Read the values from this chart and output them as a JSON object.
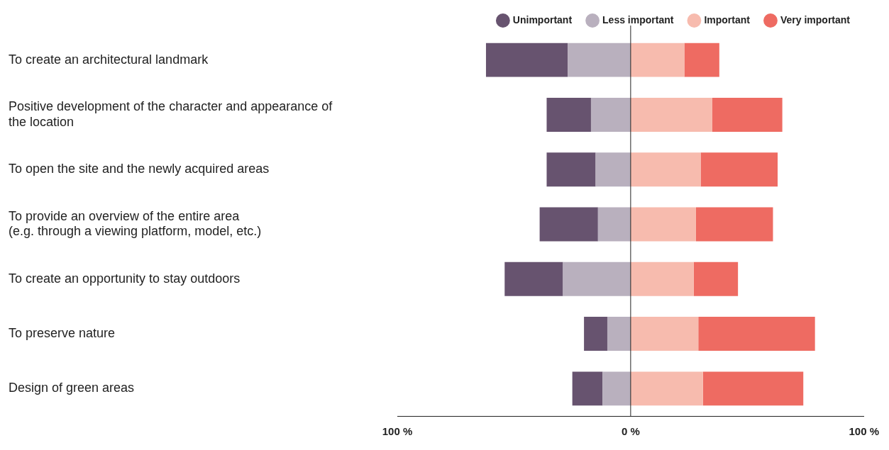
{
  "chart_data": {
    "type": "bar",
    "orientation": "horizontal",
    "stacked": true,
    "categories": [
      "To create an architectural landmark",
      "Positive development of the character and appearance of\nthe location",
      "To open the site and the newly acquired areas",
      "To provide an overview of the entire area\n(e.g. through a viewing platform, model, etc.)",
      "To create an opportunity to stay outdoors",
      "To preserve nature",
      "Design of green areas"
    ],
    "series": [
      {
        "name": "Less important",
        "color": "#b9b0be",
        "values": [
          -27,
          -17,
          -15,
          -14,
          -29,
          -10,
          -12
        ]
      },
      {
        "name": "Unimportant",
        "color": "#67536f",
        "values": [
          -35,
          -19,
          -21,
          -25,
          -25,
          -10,
          -13
        ]
      },
      {
        "name": "Important",
        "color": "#f7bbae",
        "values": [
          23,
          35,
          30,
          28,
          27,
          29,
          31
        ]
      },
      {
        "name": "Very important",
        "color": "#ee6b62",
        "values": [
          15,
          30,
          33,
          33,
          19,
          50,
          43
        ]
      }
    ],
    "xlim": [
      -100,
      100
    ],
    "xticks": [
      {
        "value": -100,
        "label": "100 %"
      },
      {
        "value": 0,
        "label": "0 %"
      },
      {
        "value": 100,
        "label": "100 %"
      }
    ],
    "ref_lines": [
      {
        "axis": "x",
        "value": 0,
        "color": "#222222"
      }
    ],
    "grid": false,
    "legend": "top right"
  }
}
